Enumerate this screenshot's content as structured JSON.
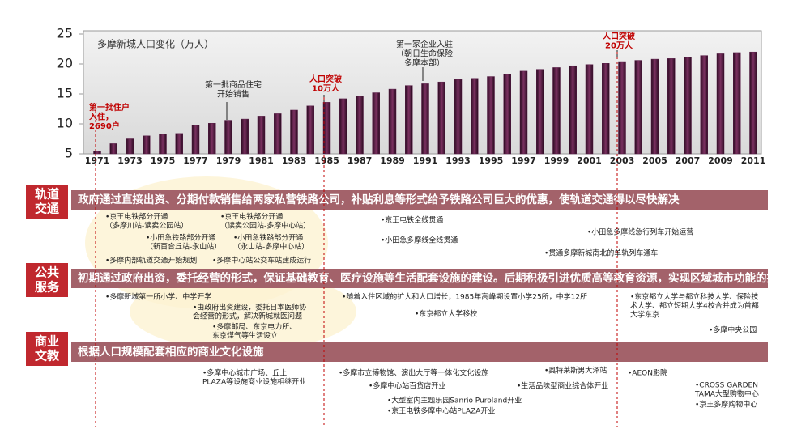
{
  "chart_data": {
    "type": "bar",
    "title": "多摩新城人口变化（万人）",
    "categories": [
      "1971",
      null,
      "1973",
      null,
      "1975",
      null,
      "1977",
      null,
      "1979",
      null,
      "1981",
      null,
      "1983",
      null,
      "1985",
      null,
      "1987",
      null,
      "1989",
      null,
      "1991",
      null,
      "1993",
      null,
      "1995",
      null,
      "1997",
      null,
      "1999",
      null,
      "2001",
      null,
      "2003",
      null,
      "2005",
      null,
      "2007",
      null,
      "2009",
      null,
      "2011"
    ],
    "values": [
      5.5,
      6.7,
      7.5,
      8.0,
      8.3,
      8.4,
      9.8,
      10.1,
      10.6,
      10.8,
      11.3,
      11.7,
      12.3,
      13.0,
      13.6,
      14.2,
      14.6,
      15.2,
      15.8,
      16.4,
      16.7,
      17.0,
      17.4,
      17.6,
      17.9,
      18.3,
      18.8,
      19.1,
      19.4,
      19.7,
      19.9,
      20.1,
      20.4,
      20.6,
      20.8,
      20.9,
      21.1,
      21.4,
      21.7,
      21.9,
      22.0
    ],
    "color": "#5a1f48",
    "ylim": [
      5,
      25
    ],
    "yticks": [
      5,
      10,
      15,
      20,
      25
    ],
    "annotations": [
      {
        "lines": [
          "第一批住户",
          "入住，",
          "2690户"
        ],
        "color": "#c00000"
      },
      {
        "lines": [
          "第一批商品住宅",
          "开始销售"
        ],
        "color": "#222222"
      },
      {
        "lines": [
          "人口突破",
          "10万人"
        ],
        "color": "#c00000"
      },
      {
        "lines": [
          "第一家企业入驻",
          "（朝日生命保险",
          "多摩本部）"
        ],
        "color": "#222222"
      },
      {
        "lines": [
          "人口突破",
          "20万人"
        ],
        "color": "#c00000"
      }
    ]
  },
  "sections": [
    {
      "label": [
        "轨道",
        "交通"
      ],
      "banner": "政府通过直接出资、分期付款销售给两家私营铁路公司，补贴利息等形式给予铁路公司巨大的优惠，使轨道交通得以尽快解决",
      "items": [
        {
          "lines": [
            "•京王电铁部分开通",
            "（多摩川站-读卖公园站）"
          ]
        },
        {
          "lines": [
            "•京王电铁部分开通",
            "（读卖公园站-多摩中心站）"
          ]
        },
        {
          "lines": [
            "•小田急铁路部分开通",
            "（新百合丘站-永山站）"
          ]
        },
        {
          "lines": [
            "•小田急铁路部分开通",
            "（永山站-多摩中心站）"
          ]
        },
        {
          "lines": [
            "•多摩内部轨道交通开始规划"
          ]
        },
        {
          "lines": [
            "•多摩中心站公交车站建成运行"
          ]
        },
        {
          "lines": [
            "•京王电铁全线贯通"
          ]
        },
        {
          "lines": [
            "•小田急多摩线全线贯通"
          ]
        },
        {
          "lines": [
            "•小田急多摩线急行列车开始运营"
          ]
        },
        {
          "lines": [
            "•贯通多摩新城南北的单轨列车通车"
          ]
        }
      ]
    },
    {
      "label": [
        "公共",
        "服务"
      ],
      "banner": "初期通过政府出资，委托经营的形式，保证基础教育、医疗设施等生活配套设施的建设。后期积极引进优质高等教育资源，实现区域城市功能的提升",
      "items": [
        {
          "lines": [
            "•多摩新城第一所小学、中学开学"
          ]
        },
        {
          "lines": [
            "•由政府出资建设，委托日本医师协",
            "会经营的形式，解决新城就医问题"
          ]
        },
        {
          "lines": [
            "•多摩邮局、东京电力所、",
            "东京煤气等生活设立"
          ]
        },
        {
          "lines": [
            "•随着入住区域的扩大和人口增长，1985年高峰期设置小学25所，中学12所"
          ]
        },
        {
          "lines": [
            "•东京都立大学移校"
          ]
        },
        {
          "lines": [
            "•东京都立大学与都立科技大学、保险技",
            "术大学、都立短期大学4校合并成为首都",
            "大学东京"
          ]
        },
        {
          "lines": [
            "•多摩中央公园"
          ]
        }
      ]
    },
    {
      "label": [
        "商业",
        "文教"
      ],
      "banner": "根据人口规模配套相应的商业文化设施",
      "items": [
        {
          "lines": [
            "•多摩中心城市广场、丘上",
            "PLAZA等设施商业设施相继开业"
          ]
        },
        {
          "lines": [
            "•多摩市立博物馆、演出大厅等一体化文化设施"
          ]
        },
        {
          "lines": [
            "•多摩中心站百货店开业"
          ]
        },
        {
          "lines": [
            "•大型室内主题乐园Sanrio Puroland开业"
          ]
        },
        {
          "lines": [
            "•京王电铁多摩中心站PLAZA开业"
          ]
        },
        {
          "lines": [
            "•奥特莱斯男大泽站"
          ]
        },
        {
          "lines": [
            "•生活品味型商业综合体开业"
          ]
        },
        {
          "lines": [
            "•AEON影院"
          ]
        },
        {
          "lines": [
            "•CROSS GARDEN",
            "TAMA大型购物中心"
          ]
        },
        {
          "lines": [
            "•京王多摩购物中心"
          ]
        }
      ]
    }
  ]
}
